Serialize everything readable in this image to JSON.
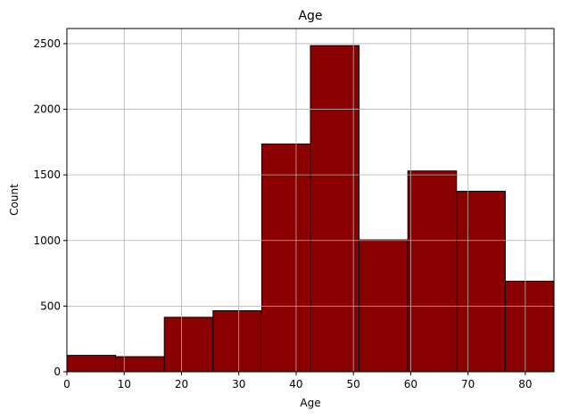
{
  "chart_data": {
    "type": "histogram",
    "title": "Age",
    "x_label": "Age",
    "y_label": "Count",
    "bins": [
      0,
      8.5,
      17,
      25.5,
      34,
      42.5,
      51,
      59.5,
      68,
      76.5,
      85
    ],
    "values": [
      125,
      115,
      415,
      465,
      1735,
      2485,
      1005,
      1530,
      1375,
      690
    ],
    "color": "#8b0000",
    "edge_color": "#000000",
    "xlim": [
      0,
      85
    ],
    "xticks": [
      0,
      10,
      20,
      30,
      40,
      50,
      60,
      70,
      80
    ],
    "ylim": [
      0,
      2615
    ],
    "yticks": [
      0,
      500,
      1000,
      1500,
      2000,
      2500
    ],
    "grid": true
  }
}
